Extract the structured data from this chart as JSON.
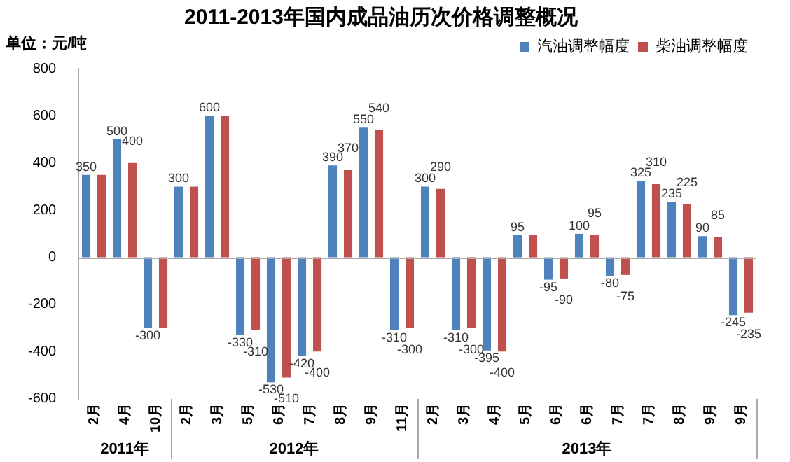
{
  "chart_data": {
    "type": "bar",
    "title": "2011-2013年国内成品油历次价格调整概况",
    "ylabel": "单位：元/吨",
    "categories": [
      "2月",
      "4月",
      "10月",
      "2月",
      "3月",
      "5月",
      "6月",
      "7月",
      "8月",
      "9月",
      "11月",
      "2月",
      "3月",
      "4月",
      "5月",
      "6月",
      "6月",
      "7月",
      "7月",
      "8月",
      "9月",
      "9月"
    ],
    "series": [
      {
        "name": "汽油调整幅度",
        "color": "#4f81bd",
        "values": [
          350,
          500,
          -300,
          300,
          600,
          -330,
          -530,
          -420,
          390,
          550,
          -310,
          300,
          -310,
          -395,
          95,
          -95,
          100,
          -80,
          325,
          235,
          90,
          -245
        ],
        "value_labels": [
          "350",
          "500",
          "-300",
          "300",
          "600",
          "-330",
          "-530",
          "-420",
          "390",
          "550",
          "-310",
          "300",
          "-310",
          "-395",
          "95",
          "-95",
          "100",
          "-80",
          "325",
          "235",
          "90",
          "-245"
        ]
      },
      {
        "name": "柴油调整幅度",
        "color": "#c0504d",
        "values": [
          350,
          400,
          -300,
          300,
          600,
          -310,
          -510,
          -400,
          370,
          540,
          -300,
          290,
          -300,
          -400,
          95,
          -90,
          95,
          -75,
          310,
          225,
          85,
          -235
        ],
        "value_labels": [
          null,
          "400",
          null,
          null,
          null,
          "-310",
          "-510",
          "-400",
          "370",
          "540",
          "-300",
          "290",
          "-300",
          "-400",
          null,
          "-90",
          "95",
          "-75",
          "310",
          "225",
          "85",
          "-235"
        ]
      }
    ],
    "ylim": [
      -600,
      800
    ],
    "yticks": [
      -600,
      -400,
      -200,
      0,
      200,
      400,
      600,
      800
    ],
    "grid": false,
    "legend": "top right",
    "ref_lines": [
      {
        "axis": "y",
        "value": 0,
        "color": "#aaaaaa"
      }
    ],
    "annotations": [
      "2011年",
      "2012年",
      "2013年"
    ]
  }
}
